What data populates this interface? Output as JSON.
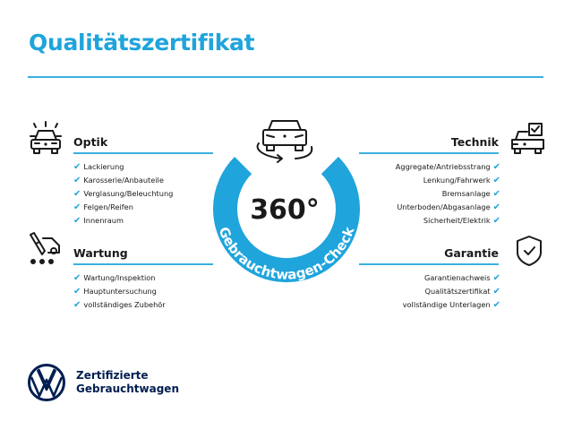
{
  "title": "Qualitätszertifikat",
  "center": {
    "badge": "360°",
    "ring_text": "Gebrauchtwagen-Check"
  },
  "sections": {
    "optik": {
      "title": "Optik",
      "icon": "car-headlights-icon",
      "items": [
        "Lackierung",
        "Karosserie/Anbauteile",
        "Verglasung/Beleuchtung",
        "Felgen/Reifen",
        "Innenraum"
      ]
    },
    "wartung": {
      "title": "Wartung",
      "icon": "service-tools-car-icon",
      "items": [
        "Wartung/Inspektion",
        "Hauptuntersuchung",
        "vollständiges Zubehör"
      ]
    },
    "technik": {
      "title": "Technik",
      "icon": "car-checklist-icon",
      "items": [
        "Aggregate/Antriebsstrang",
        "Lenkung/Fahrwerk",
        "Bremsanlage",
        "Unterboden/Abgasanlage",
        "Sicherheit/Elektrik"
      ]
    },
    "garantie": {
      "title": "Garantie",
      "icon": "shield-check-icon",
      "items": [
        "Garantienachweis",
        "Qualitätszertifikat",
        "vollständige Unterlagen"
      ]
    }
  },
  "check_mark": "✔",
  "brand": {
    "line1": "Zertifizierte",
    "line2": "Gebrauchtwagen",
    "logo": "vw-logo"
  },
  "colors": {
    "accent": "#1fa4dc",
    "brand_navy": "#001e50",
    "text": "#1a1a1a"
  }
}
